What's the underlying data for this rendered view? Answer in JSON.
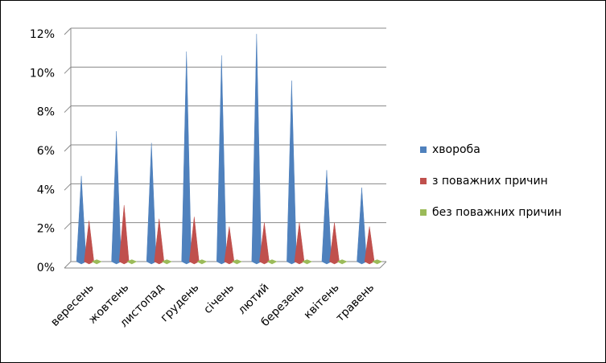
{
  "chart_data": {
    "type": "cone",
    "categories": [
      "вересень",
      "жовтень",
      "листопад",
      "грудень",
      "січень",
      "лютий",
      "березень",
      "квітень",
      "травень"
    ],
    "series": [
      {
        "name": "хвороба",
        "color": "#4f81bd",
        "values": [
          4.4,
          6.7,
          6.1,
          10.8,
          10.6,
          11.7,
          9.3,
          4.7,
          3.8
        ]
      },
      {
        "name": " з поважних причин",
        "color": "#c0504d",
        "values": [
          2.1,
          2.9,
          2.2,
          2.3,
          1.8,
          2.0,
          2.0,
          2.0,
          1.8
        ]
      },
      {
        "name": "без поважних причин",
        "color": "#9bbb59",
        "values": [
          0.1,
          0.1,
          0.1,
          0.1,
          0.1,
          0.1,
          0.1,
          0.1,
          0.1
        ]
      }
    ],
    "ylim": [
      0,
      12
    ],
    "yticks": [
      {
        "value": 0,
        "label": "0%"
      },
      {
        "value": 2,
        "label": "2%"
      },
      {
        "value": 4,
        "label": "4%"
      },
      {
        "value": 6,
        "label": "6%"
      },
      {
        "value": 8,
        "label": "8%"
      },
      {
        "value": 10,
        "label": "10%"
      },
      {
        "value": 12,
        "label": "12%"
      }
    ],
    "grid": true,
    "legend": "right"
  }
}
